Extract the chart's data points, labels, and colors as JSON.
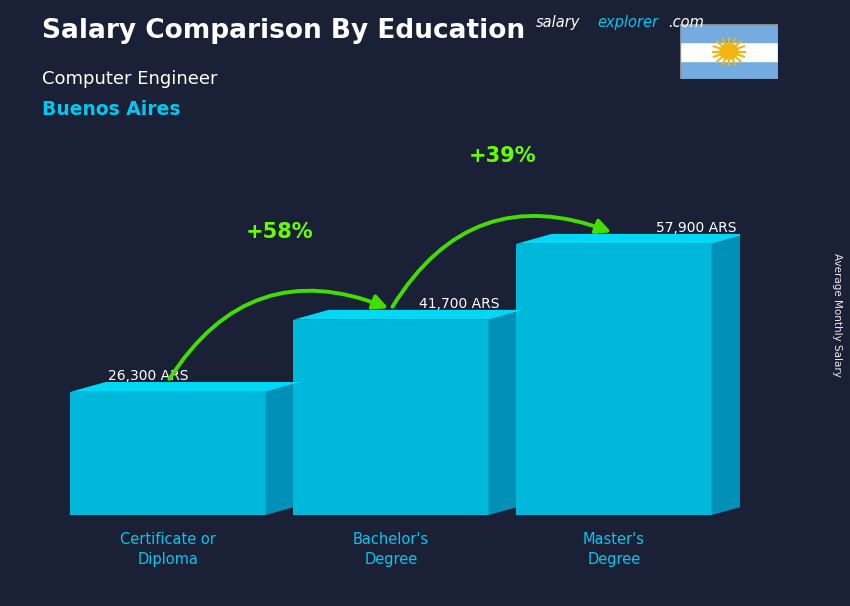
{
  "title_main": "Salary Comparison By Education",
  "subtitle_job": "Computer Engineer",
  "subtitle_city": "Buenos Aires",
  "ylabel": "Average Monthly Salary",
  "website_salary": "salary",
  "website_explorer": "explorer",
  "website_com": ".com",
  "categories": [
    "Certificate or\nDiploma",
    "Bachelor's\nDegree",
    "Master's\nDegree"
  ],
  "values": [
    26300,
    41700,
    57900
  ],
  "value_labels": [
    "26,300 ARS",
    "41,700 ARS",
    "57,900 ARS"
  ],
  "bar_color_front": "#00b8d9",
  "bar_color_top": "#00d8f5",
  "bar_color_side": "#0090b8",
  "pct_labels": [
    "+58%",
    "+39%"
  ],
  "pct_color": "#66ff00",
  "arrow_color": "#44dd00",
  "text_color_white": "#ffffff",
  "text_color_cyan": "#00c8f0",
  "bg_overlay_color": "#1a2035",
  "bg_overlay_alpha": 0.45,
  "ylim": [
    0,
    75000
  ],
  "bar_width": 0.28,
  "bar_positions": [
    0.18,
    0.5,
    0.82
  ],
  "fig_width": 8.5,
  "fig_height": 6.06,
  "flag_stripes": [
    "#74acdf",
    "#ffffff",
    "#74acdf"
  ],
  "flag_sun_color": "#F6B40E"
}
